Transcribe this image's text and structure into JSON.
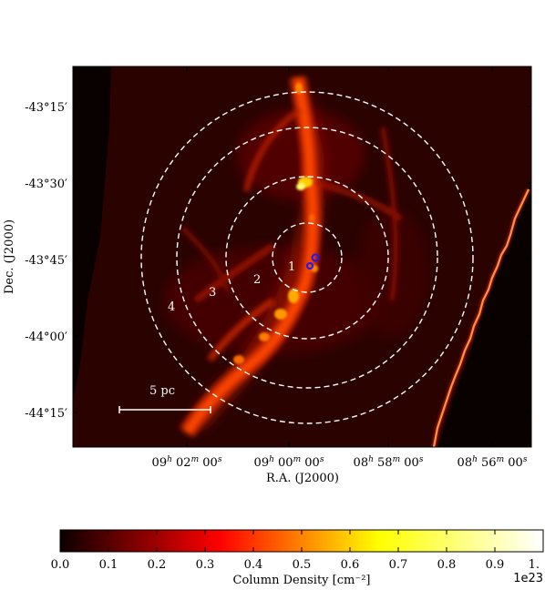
{
  "axes": {
    "xlabel": "R.A. (J2000)",
    "ylabel": "Dec. (J2000)",
    "x_ticks": [
      {
        "h": "09",
        "m": "02",
        "s": "00"
      },
      {
        "h": "09",
        "m": "00",
        "s": "00"
      },
      {
        "h": "08",
        "m": "58",
        "s": "00"
      },
      {
        "h": "08",
        "m": "56",
        "s": "00"
      }
    ],
    "y_ticks": [
      "-43°15′",
      "-43°30′",
      "-43°45′",
      "-44°00′",
      "-44°15′"
    ]
  },
  "annotations": {
    "scale_bar_label": "5 pc",
    "ring_labels": [
      "1",
      "2",
      "3",
      "4"
    ]
  },
  "colorbar": {
    "label": "Column Density [cm⁻²]",
    "ticks": [
      "0.0",
      "0.1",
      "0.2",
      "0.3",
      "0.4",
      "0.5",
      "0.6",
      "0.7",
      "0.8",
      "0.9",
      "1."
    ],
    "offset_text": "1e23",
    "colormap": "hot",
    "range": [
      0.0,
      1.0
    ]
  },
  "colors": {
    "ring": "#ffffff",
    "marker": "#1a1aff",
    "scale_bar": "#ffffff"
  }
}
